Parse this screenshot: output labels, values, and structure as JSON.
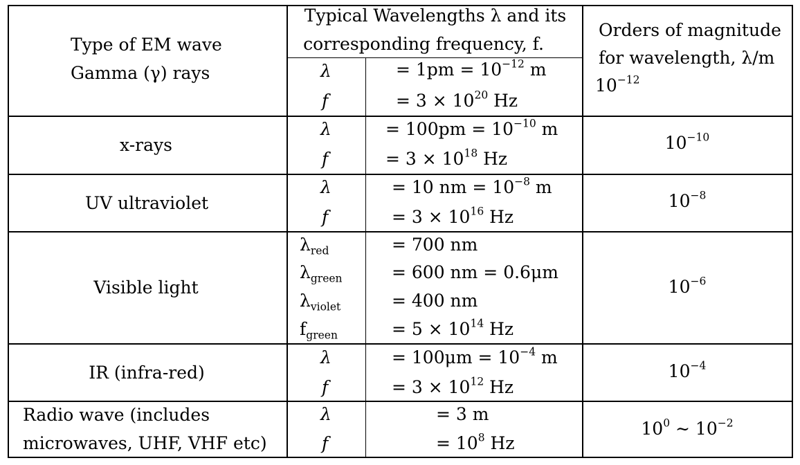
{
  "header": {
    "type_col": "Type of EM wave",
    "wavelength_col_line1": "Typical Wavelengths λ and its",
    "wavelength_col_line2": "corresponding frequency, f.",
    "magnitude_col_line1": "Orders of magnitude",
    "magnitude_col_line2": "for wavelength, λ/m"
  },
  "rows": [
    {
      "name": "Gamma (γ) rays",
      "entries": [
        {
          "sym": "λ",
          "val": "= 1pm = 10",
          "exp": "−12",
          "tail": " m"
        },
        {
          "sym": "f",
          "val": "= 3 × 10",
          "exp": "20",
          "tail": " Hz"
        }
      ],
      "mag_base": "10",
      "mag_exp": "−12"
    },
    {
      "name": "x-rays",
      "entries": [
        {
          "sym": "λ",
          "val": "= 100pm = 10",
          "exp": "−10",
          "tail": " m"
        },
        {
          "sym": "f",
          "val": "= 3 × 10",
          "exp": "18",
          "tail": " Hz"
        }
      ],
      "mag_base": "10",
      "mag_exp": "−10"
    },
    {
      "name": "UV ultraviolet",
      "entries": [
        {
          "sym": "λ",
          "val": "= 10 nm = 10",
          "exp": "−8",
          "tail": " m"
        },
        {
          "sym": "f",
          "val": "= 3 × 10",
          "exp": "16",
          "tail": " Hz"
        }
      ],
      "mag_base": "10",
      "mag_exp": "−8"
    },
    {
      "name": "Visible light",
      "entries": [
        {
          "sym": "λ",
          "sub": "red",
          "val": "= 700 nm"
        },
        {
          "sym": "λ",
          "sub": "green",
          "val": "= 600 nm = 0.6μm"
        },
        {
          "sym": "λ",
          "sub": "violet",
          "val": "= 400 nm"
        },
        {
          "sym": "f",
          "sub": "green",
          "val": "= 5 × 10",
          "exp": "14",
          "tail": " Hz"
        }
      ],
      "mag_base": "10",
      "mag_exp": "−6"
    },
    {
      "name": "IR (infra-red)",
      "entries": [
        {
          "sym": "λ",
          "val": "= 100μm = 10",
          "exp": "−4",
          "tail": " m"
        },
        {
          "sym": "f",
          "val": "= 3 × 10",
          "exp": "12",
          "tail": " Hz"
        }
      ],
      "mag_base": "10",
      "mag_exp": "−4"
    },
    {
      "name_line1": "Radio wave (includes",
      "name_line2": "microwaves, UHF, VHF etc)",
      "entries": [
        {
          "sym": "λ",
          "val": "= 3 m"
        },
        {
          "sym": "f",
          "val": "= 10",
          "exp": "8",
          "tail": " Hz"
        }
      ],
      "mag_base": "10",
      "mag_exp": "0",
      "mag_tail": " ∼ 10",
      "mag_exp2": "−2"
    }
  ]
}
